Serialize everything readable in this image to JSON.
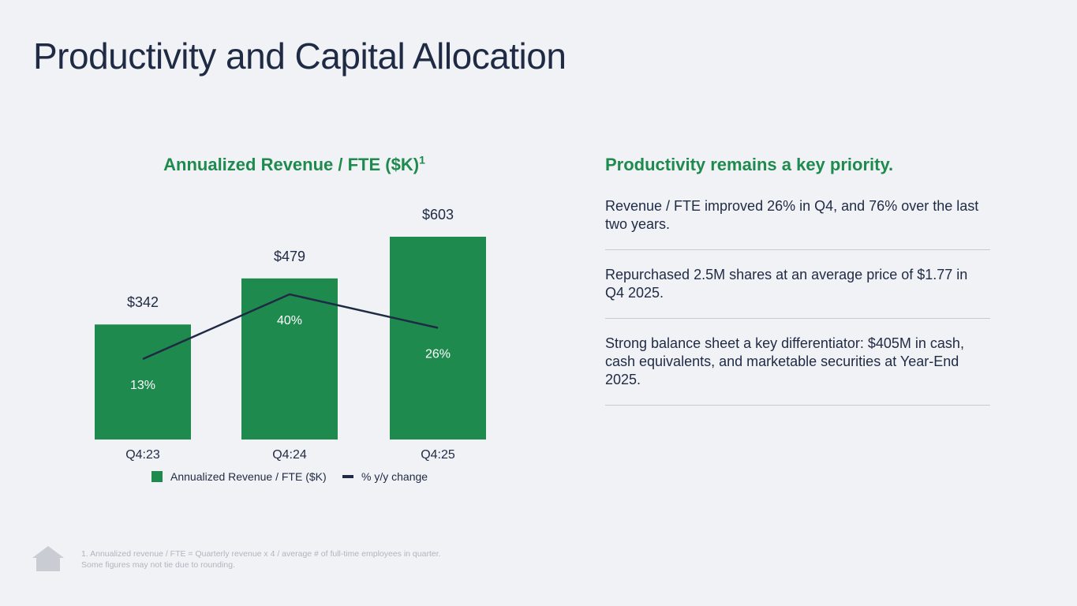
{
  "page": {
    "title": "Productivity and Capital Allocation"
  },
  "chart_data": {
    "type": "bar",
    "title": "Annualized Revenue / FTE ($K)",
    "title_superscript": "1",
    "categories": [
      "Q4:23",
      "Q4:24",
      "Q4:25"
    ],
    "series": [
      {
        "name": "Annualized Revenue / FTE ($K)",
        "kind": "bar",
        "values": [
          342,
          479,
          603
        ],
        "value_labels": [
          "$342",
          "$479",
          "$603"
        ],
        "color": "#1f8a4e"
      },
      {
        "name": "% y/y change",
        "kind": "line",
        "values": [
          13,
          40,
          26
        ],
        "value_labels": [
          "13%",
          "40%",
          "26%"
        ],
        "color": "#1f2a44"
      }
    ],
    "ylim": [
      0,
      603
    ],
    "line_ylim": [
      0,
      40
    ],
    "xlabel": "",
    "ylabel": "",
    "grid": false,
    "legend": "bottom-center"
  },
  "panel": {
    "heading": "Productivity remains a key priority.",
    "bullets": [
      "Revenue / FTE improved 26% in Q4, and 76% over the last two years.",
      "Repurchased 2.5M shares at an average price of $1.77 in Q4 2025.",
      "Strong balance sheet a key differentiator: $405M in cash, cash equivalents, and marketable securities at Year-End 2025."
    ]
  },
  "footnote": {
    "line1": "1. Annualized revenue / FTE = Quarterly revenue x 4 / average # of full-time employees in quarter.",
    "line2": "Some figures may not tie due to rounding."
  },
  "icons": {
    "logo": "home-icon"
  }
}
